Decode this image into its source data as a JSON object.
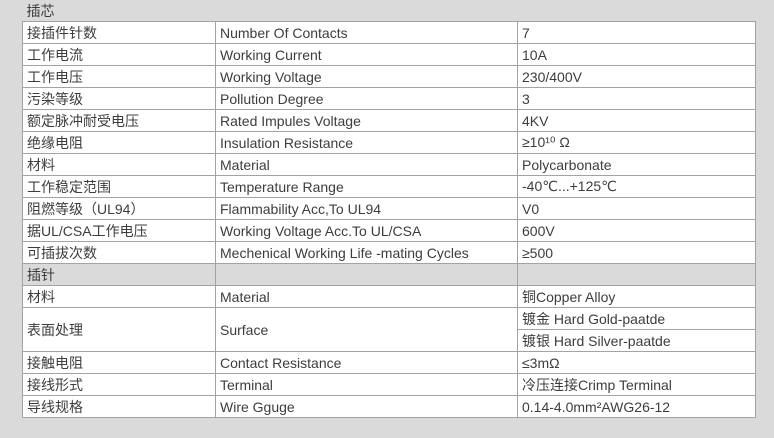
{
  "page": {
    "background_color": "#dadada",
    "cell_background": "#ffffff",
    "header_background": "#dadada",
    "border_color": "#a3a3a3",
    "text_color": "#3d3d3d"
  },
  "table": {
    "sections": [
      {
        "title": "插芯",
        "rows": [
          {
            "cn": "接插件针数",
            "en": "Number Of Contacts",
            "value": "7"
          },
          {
            "cn": "工作电流",
            "en": "Working Current",
            "value": "10A"
          },
          {
            "cn": "工作电压",
            "en": "Working Voltage",
            "value": "230/400V"
          },
          {
            "cn": "污染等级",
            "en": "Pollution Degree",
            "value": "3"
          },
          {
            "cn": "额定脉冲耐受电压",
            "en": "Rated Impules Voltage",
            "value": "4KV"
          },
          {
            "cn": "绝缘电阻",
            "en": "Insulation Resistance",
            "value": "≥10¹⁰ Ω"
          },
          {
            "cn": "材料",
            "en": "Material",
            "value": "Polycarbonate"
          },
          {
            "cn": "工作稳定范围",
            "en": "Temperature Range",
            "value": "-40℃...+125℃"
          },
          {
            "cn": "阻燃等级（UL94）",
            "en": "Flammability Acc,To UL94",
            "value": "V0"
          },
          {
            "cn": "据UL/CSA工作电压",
            "en": "Working Voltage Acc.To UL/CSA",
            "value": "600V"
          },
          {
            "cn": "可插拔次数",
            "en": "Mechenical Working Life -mating Cycles",
            "value": "≥500"
          }
        ]
      },
      {
        "title": "插针",
        "rows": [
          {
            "cn": "材料",
            "en": "Material",
            "value": "铜Copper Alloy"
          },
          {
            "cn": "表面处理",
            "en": "Surface",
            "values": [
              "镀金 Hard Gold-paatde",
              "镀银 Hard Silver-paatde"
            ]
          },
          {
            "cn": "接触电阻",
            "en": "Contact Resistance",
            "value": "≤3mΩ"
          },
          {
            "cn": "接线形式",
            "en": "Terminal",
            "value": "冷压连接Crimp Terminal"
          },
          {
            "cn": "导线规格",
            "en": "Wire Gguge",
            "value": "0.14-4.0mm²AWG26-12"
          }
        ]
      }
    ]
  }
}
